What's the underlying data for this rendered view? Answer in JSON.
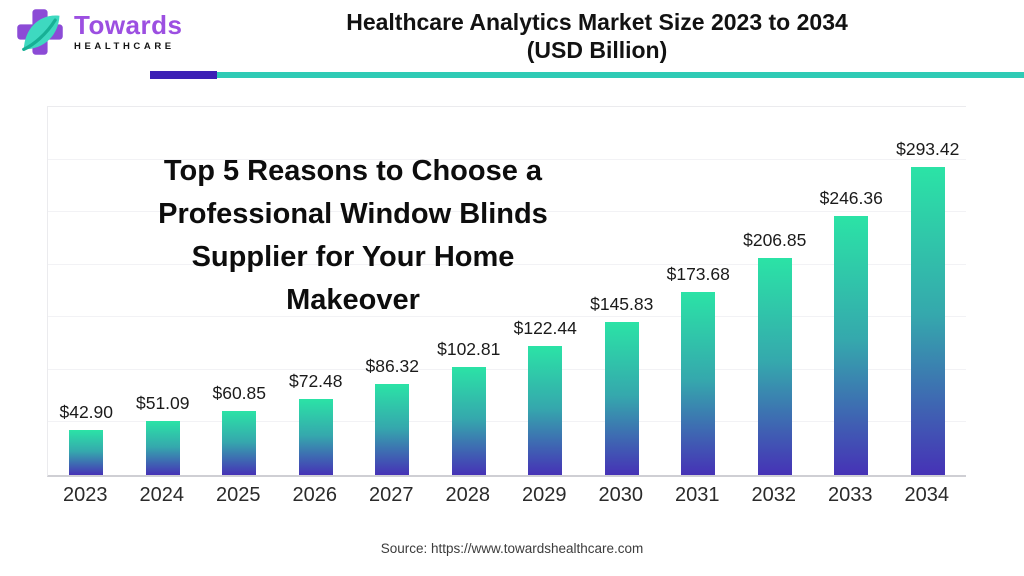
{
  "brand": {
    "name": "Towards",
    "subname": "HEALTHCARE",
    "purple": "#9c4fe1"
  },
  "header": {
    "title_line1": "Healthcare Analytics Market Size 2023 to 2034",
    "title_line2": "(USD Billion)",
    "divider_purple": "#3c20b5",
    "divider_teal": "#2fcbb5"
  },
  "overlay_text": {
    "lines": [
      "Top 5 Reasons to Choose a",
      "Professional Window Blinds",
      "Supplier for Your Home",
      "Makeover"
    ]
  },
  "chart_data": {
    "type": "bar",
    "title": "Healthcare Analytics Market Size 2023 to 2034 (USD Billion)",
    "categories": [
      "2023",
      "2024",
      "2025",
      "2026",
      "2027",
      "2028",
      "2029",
      "2030",
      "2031",
      "2032",
      "2033",
      "2034"
    ],
    "values": [
      42.9,
      51.09,
      60.85,
      72.48,
      86.32,
      102.81,
      122.44,
      145.83,
      173.68,
      206.85,
      246.36,
      293.42
    ],
    "value_labels": [
      "$42.90",
      "$51.09",
      "$60.85",
      "$72.48",
      "$86.32",
      "$102.81",
      "$122.44",
      "$145.83",
      "$173.68",
      "$206.85",
      "$246.36",
      "$293.42"
    ],
    "xlabel": "",
    "ylabel": "",
    "ylim": [
      0,
      350
    ],
    "gridline_step": 50,
    "grid": "horizontal",
    "legend": "none",
    "bar_gradient_top": "#2be3a6",
    "bar_gradient_mid": "#35a8ad",
    "bar_gradient_bottom": "#4632b6"
  },
  "footer": {
    "source": "Source: https://www.towardshealthcare.com"
  }
}
